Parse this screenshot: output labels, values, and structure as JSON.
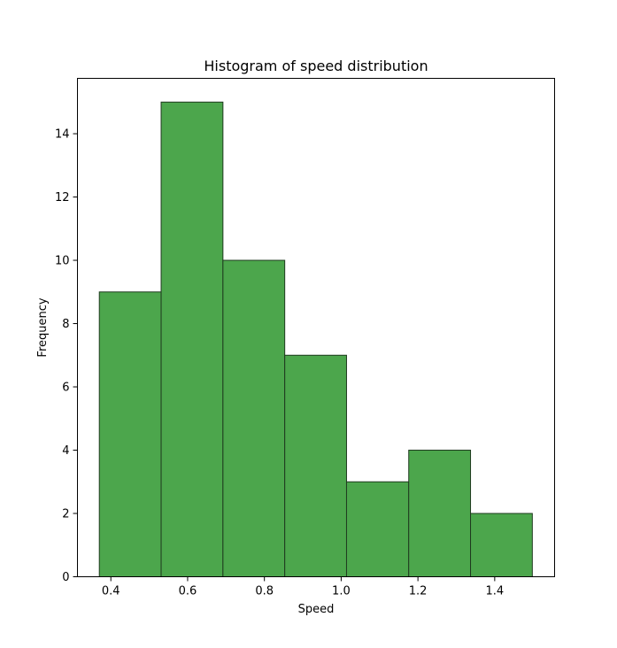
{
  "chart_data": {
    "type": "bar",
    "title": "Histogram of speed distribution",
    "xlabel": "Speed",
    "ylabel": "Frequency",
    "xlim": [
      0.313,
      1.556
    ],
    "ylim": [
      0,
      15.75
    ],
    "x_ticks": [
      0.4,
      0.6,
      0.8,
      1.0,
      1.2,
      1.4
    ],
    "x_tick_labels": [
      "0.4",
      "0.6",
      "0.8",
      "1.0",
      "1.2",
      "1.4"
    ],
    "y_ticks": [
      0,
      2,
      4,
      6,
      8,
      10,
      12,
      14
    ],
    "y_tick_labels": [
      "0",
      "2",
      "4",
      "6",
      "8",
      "10",
      "12",
      "14"
    ],
    "bin_edges": [
      0.37,
      0.531,
      0.692,
      0.853,
      1.014,
      1.176,
      1.337,
      1.498
    ],
    "values": [
      9,
      15,
      10,
      7,
      3,
      4,
      2
    ],
    "bar_color": "#4ca64c",
    "edge_color": "#1f3a1f",
    "grid": false
  }
}
